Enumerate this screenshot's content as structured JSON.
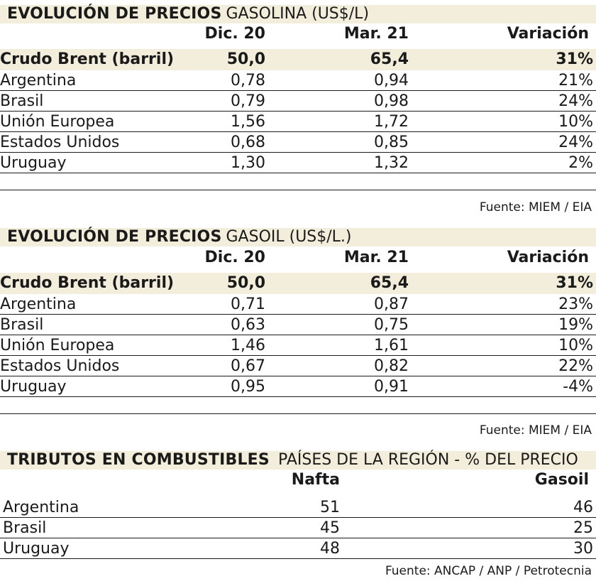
{
  "gasolina": {
    "title_bold": "EVOLUCIÓN DE PRECIOS",
    "title_rest": "GASOLINA (US$/L)",
    "headers": [
      "Dic. 20",
      "Mar. 21",
      "Variación"
    ],
    "brent": {
      "label": "Crudo Brent (barril)",
      "dic": "50,0",
      "mar": "65,4",
      "var": "31%"
    },
    "rows": [
      {
        "label": "Argentina",
        "dic": "0,78",
        "mar": "0,94",
        "var": "21%"
      },
      {
        "label": "Brasil",
        "dic": "0,79",
        "mar": "0,98",
        "var": "24%"
      },
      {
        "label": "Unión Europea",
        "dic": "1,56",
        "mar": "1,72",
        "var": "10%"
      },
      {
        "label": "Estados Unidos",
        "dic": "0,68",
        "mar": "0,85",
        "var": "24%"
      },
      {
        "label": "Uruguay",
        "dic": "1,30",
        "mar": "1,32",
        "var": "2%"
      }
    ],
    "source": "Fuente: MIEM / EIA"
  },
  "gasoil": {
    "title_bold": "EVOLUCIÓN DE PRECIOS",
    "title_rest": "GASOIL (US$/L.)",
    "headers": [
      "Dic. 20",
      "Mar. 21",
      "Variación"
    ],
    "brent": {
      "label": "Crudo Brent (barril)",
      "dic": "50,0",
      "mar": "65,4",
      "var": "31%"
    },
    "rows": [
      {
        "label": "Argentina",
        "dic": "0,71",
        "mar": "0,87",
        "var": "23%"
      },
      {
        "label": "Brasil",
        "dic": "0,63",
        "mar": "0,75",
        "var": "19%"
      },
      {
        "label": "Unión Europea",
        "dic": "1,46",
        "mar": "1,61",
        "var": "10%"
      },
      {
        "label": "Estados Unidos",
        "dic": "0,67",
        "mar": "0,82",
        "var": "22%"
      },
      {
        "label": "Uruguay",
        "dic": "0,95",
        "mar": "0,91",
        "var": "-4%"
      }
    ],
    "source": "Fuente: MIEM / EIA"
  },
  "tributos": {
    "title_bold": "TRIBUTOS EN COMBUSTIBLES",
    "title_rest": "PAÍSES DE LA REGIÓN - % DEL PRECIO",
    "headers": [
      "Nafta",
      "Gasoil"
    ],
    "rows": [
      {
        "label": "Argentina",
        "nafta": "51",
        "gasoil": "46"
      },
      {
        "label": "Brasil",
        "nafta": "45",
        "gasoil": "25"
      },
      {
        "label": "Uruguay",
        "nafta": "48",
        "gasoil": "30"
      }
    ],
    "source": "Fuente: ANCAP / ANP / Petrotecnia"
  }
}
